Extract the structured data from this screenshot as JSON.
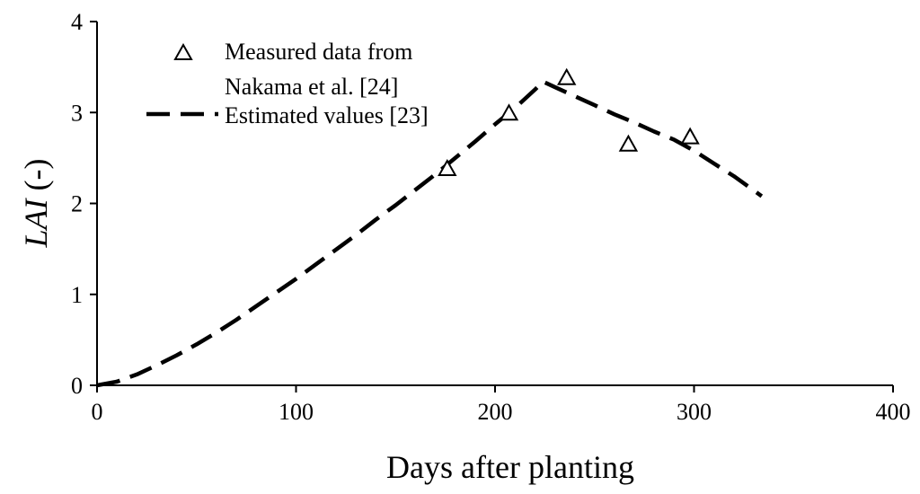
{
  "chart_data": {
    "type": "line",
    "title": "",
    "xlabel": "Days after planting",
    "ylabel_main": "LAI",
    "ylabel_suffix": " (-)",
    "xlim": [
      0,
      400
    ],
    "ylim": [
      0,
      4
    ],
    "x_ticks": [
      0,
      100,
      200,
      300,
      400
    ],
    "y_ticks": [
      0,
      1,
      2,
      3,
      4
    ],
    "grid": false,
    "legend_position": "top-left",
    "series": [
      {
        "name": "Measured data from Nakama et al. [24]",
        "legend_lines": [
          "Measured data from",
          "Nakama et al. [24]"
        ],
        "style": "markers",
        "marker": "open-triangle",
        "x": [
          176,
          207,
          236,
          267,
          298
        ],
        "y": [
          2.38,
          2.99,
          3.38,
          2.65,
          2.73
        ]
      },
      {
        "name": "Estimated values [23]",
        "legend_lines": [
          "Estimated values [23]"
        ],
        "style": "dashed-line",
        "x": [
          0,
          10,
          20,
          30,
          40,
          50,
          60,
          70,
          80,
          90,
          100,
          110,
          120,
          130,
          140,
          150,
          160,
          170,
          180,
          190,
          200,
          210,
          220,
          224,
          230,
          240,
          250,
          260,
          270,
          280,
          290,
          300,
          310,
          320,
          334
        ],
        "y": [
          0.0,
          0.04,
          0.12,
          0.22,
          0.33,
          0.45,
          0.58,
          0.72,
          0.87,
          1.02,
          1.17,
          1.33,
          1.49,
          1.65,
          1.82,
          1.98,
          2.15,
          2.32,
          2.5,
          2.68,
          2.87,
          3.05,
          3.25,
          3.34,
          3.28,
          3.18,
          3.08,
          2.98,
          2.89,
          2.79,
          2.7,
          2.58,
          2.44,
          2.3,
          2.08
        ]
      }
    ],
    "style": {
      "line_color": "#000000",
      "background": "#ffffff"
    }
  }
}
